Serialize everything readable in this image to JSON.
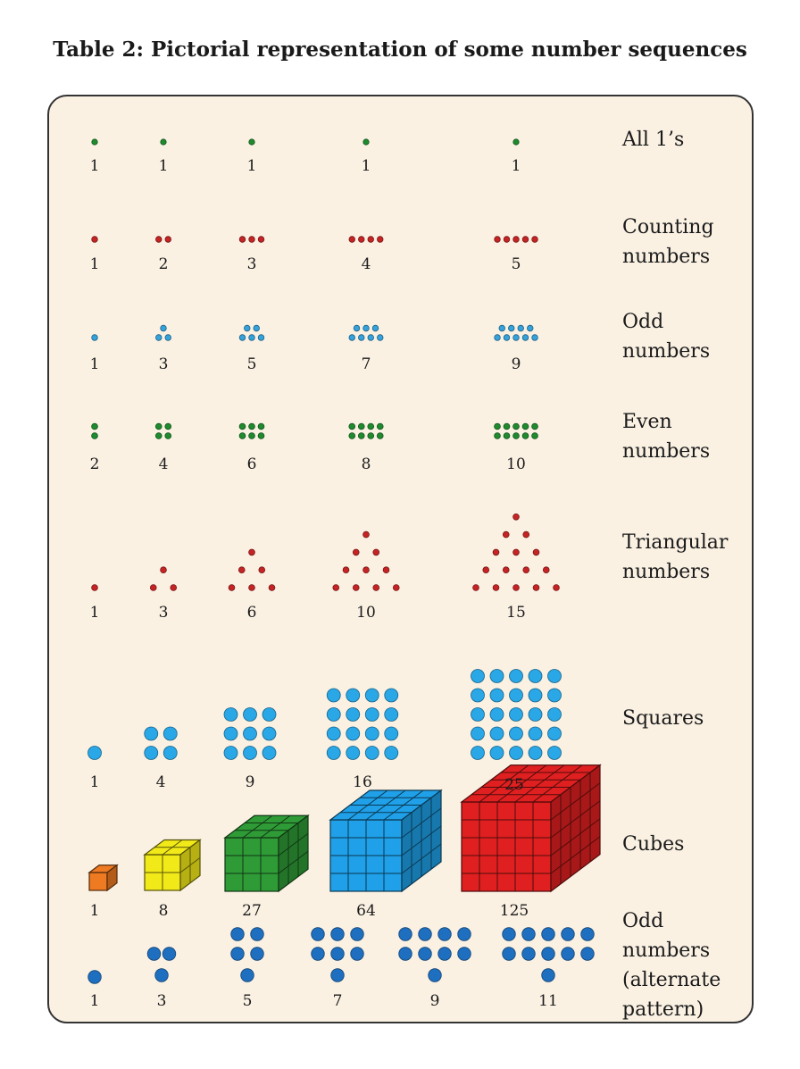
{
  "title": "Table 2: Pictorial representation of some number sequences",
  "colors": {
    "panel_background": "#faf1e3",
    "dot_green": "#1f8a2e",
    "dot_red": "#c62424",
    "dot_light_blue": "#35a2dc",
    "dot_bright_blue": "#29a7e6",
    "dot_dark_blue": "#1e6fc0",
    "cube_orange": "#ee7a22",
    "cube_yellow": "#f2ea18",
    "cube_green": "#2f9b37",
    "cube_blue": "#1fa0e8",
    "cube_red": "#e02020"
  },
  "rows": [
    {
      "id": "all-ones",
      "label_lines": [
        "All 1’s"
      ],
      "values": [
        "1",
        "1",
        "1",
        "1",
        "1"
      ]
    },
    {
      "id": "counting",
      "label_lines": [
        "Counting",
        "numbers"
      ],
      "values": [
        "1",
        "2",
        "3",
        "4",
        "5"
      ]
    },
    {
      "id": "odd",
      "label_lines": [
        "Odd",
        "numbers"
      ],
      "values": [
        "1",
        "3",
        "5",
        "7",
        "9"
      ]
    },
    {
      "id": "even",
      "label_lines": [
        "Even",
        "numbers"
      ],
      "values": [
        "2",
        "4",
        "6",
        "8",
        "10"
      ]
    },
    {
      "id": "triangular",
      "label_lines": [
        "Triangular",
        "numbers"
      ],
      "values": [
        "1",
        "3",
        "6",
        "10",
        "15"
      ]
    },
    {
      "id": "squares",
      "label_lines": [
        "Squares"
      ],
      "values": [
        "1",
        "4",
        "9",
        "16",
        "25"
      ]
    },
    {
      "id": "cubes",
      "label_lines": [
        "Cubes"
      ],
      "values": [
        "1",
        "8",
        "27",
        "64",
        "125"
      ]
    },
    {
      "id": "odd-alt",
      "label_lines": [
        "Odd",
        "numbers",
        "(alternate",
        "pattern)"
      ],
      "values": [
        "1",
        "3",
        "5",
        "7",
        "9",
        "11"
      ]
    }
  ]
}
